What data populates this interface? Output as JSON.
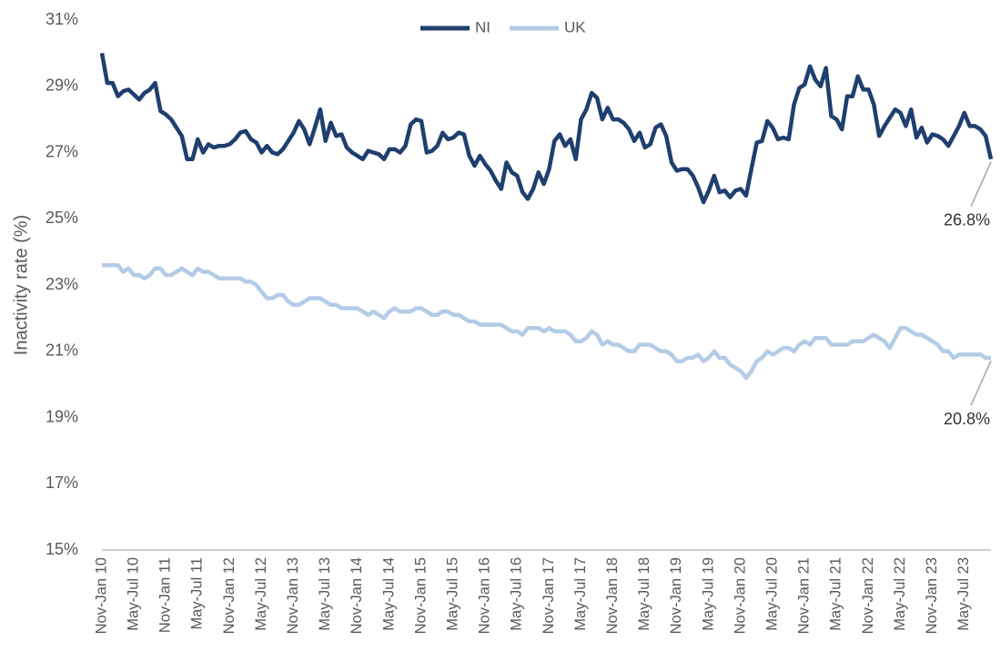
{
  "chart_data": {
    "type": "line",
    "y_label": "Inactivity rate (%)",
    "legend": "top",
    "ylim": [
      15,
      31
    ],
    "yticks": [
      {
        "value": 15,
        "label": "15%"
      },
      {
        "value": 17,
        "label": "17%"
      },
      {
        "value": 19,
        "label": "19%"
      },
      {
        "value": 21,
        "label": "21%"
      },
      {
        "value": 23,
        "label": "23%"
      },
      {
        "value": 25,
        "label": "25%"
      },
      {
        "value": 27,
        "label": "27%"
      },
      {
        "value": 29,
        "label": "29%"
      },
      {
        "value": 31,
        "label": "31%"
      }
    ],
    "categories": [
      "Nov-Jan 10",
      null,
      null,
      null,
      null,
      null,
      "May-Jul 10",
      null,
      null,
      null,
      null,
      null,
      "Nov-Jan 11",
      null,
      null,
      null,
      null,
      null,
      "May-Jul 11",
      null,
      null,
      null,
      null,
      null,
      "Nov-Jan 12",
      null,
      null,
      null,
      null,
      null,
      "May-Jul 12",
      null,
      null,
      null,
      null,
      null,
      "Nov-Jan 13",
      null,
      null,
      null,
      null,
      null,
      "May-Jul 13",
      null,
      null,
      null,
      null,
      null,
      "Nov-Jan 14",
      null,
      null,
      null,
      null,
      null,
      "May-Jul 14",
      null,
      null,
      null,
      null,
      null,
      "Nov-Jan 15",
      null,
      null,
      null,
      null,
      null,
      "May-Jul 15",
      null,
      null,
      null,
      null,
      null,
      "Nov-Jan 16",
      null,
      null,
      null,
      null,
      null,
      "May-Jul 16",
      null,
      null,
      null,
      null,
      null,
      "Nov-Jan 17",
      null,
      null,
      null,
      null,
      null,
      "May-Jul 17",
      null,
      null,
      null,
      null,
      null,
      "Nov-Jan 18",
      null,
      null,
      null,
      null,
      null,
      "May-Jul 18",
      null,
      null,
      null,
      null,
      null,
      "Nov-Jan 19",
      null,
      null,
      null,
      null,
      null,
      "May-Jul 19",
      null,
      null,
      null,
      null,
      null,
      "Nov-Jan 20",
      null,
      null,
      null,
      null,
      null,
      "May-Jul 20",
      null,
      null,
      null,
      null,
      null,
      "Nov-Jan 21",
      null,
      null,
      null,
      null,
      null,
      "May-Jul 21",
      null,
      null,
      null,
      null,
      null,
      "Nov-Jan 22",
      null,
      null,
      null,
      null,
      null,
      "May-Jul 22",
      null,
      null,
      null,
      null,
      null,
      "Nov-Jan 23",
      null,
      null,
      null,
      null,
      null,
      "May-Jul 23",
      null,
      null,
      null,
      null,
      null
    ],
    "series": [
      {
        "name": "NI",
        "color": "#1f3f6e",
        "values": [
          30.0,
          29.1,
          29.1,
          28.7,
          28.85,
          28.9,
          28.75,
          28.6,
          28.8,
          28.9,
          29.1,
          28.25,
          28.15,
          28.0,
          27.75,
          27.5,
          26.8,
          26.8,
          27.4,
          27.0,
          27.25,
          27.15,
          27.2,
          27.2,
          27.25,
          27.4,
          27.6,
          27.65,
          27.4,
          27.3,
          27.0,
          27.2,
          27.0,
          26.95,
          27.1,
          27.35,
          27.6,
          27.95,
          27.7,
          27.25,
          27.75,
          28.3,
          27.35,
          27.9,
          27.5,
          27.55,
          27.15,
          27.0,
          26.9,
          26.8,
          27.05,
          27.0,
          26.95,
          26.8,
          27.1,
          27.1,
          27.0,
          27.2,
          27.85,
          28.0,
          27.95,
          27.0,
          27.05,
          27.2,
          27.6,
          27.4,
          27.45,
          27.6,
          27.55,
          26.9,
          26.6,
          26.9,
          26.65,
          26.45,
          26.15,
          25.9,
          26.7,
          26.4,
          26.3,
          25.8,
          25.6,
          25.9,
          26.4,
          26.05,
          26.5,
          27.35,
          27.55,
          27.2,
          27.4,
          26.8,
          28.0,
          28.3,
          28.8,
          28.65,
          28.0,
          28.35,
          28.0,
          28.0,
          27.9,
          27.7,
          27.35,
          27.6,
          27.15,
          27.25,
          27.75,
          27.85,
          27.5,
          26.7,
          26.45,
          26.5,
          26.5,
          26.3,
          25.95,
          25.5,
          25.85,
          26.3,
          25.8,
          25.85,
          25.65,
          25.85,
          25.9,
          25.7,
          26.5,
          27.3,
          27.35,
          27.95,
          27.75,
          27.4,
          27.45,
          27.4,
          28.45,
          28.95,
          29.05,
          29.6,
          29.2,
          29.0,
          29.55,
          28.1,
          28.0,
          27.7,
          28.7,
          28.7,
          29.3,
          28.9,
          28.9,
          28.45,
          27.5,
          27.8,
          28.05,
          28.3,
          28.2,
          27.8,
          28.3,
          27.45,
          27.75,
          27.3,
          27.55,
          27.5,
          27.4,
          27.2,
          27.5,
          27.8,
          28.2,
          27.8,
          27.8,
          27.7,
          27.5,
          26.8
        ]
      },
      {
        "name": "UK",
        "color": "#b4cbe6",
        "values": [
          23.6,
          23.6,
          23.6,
          23.6,
          23.4,
          23.5,
          23.3,
          23.3,
          23.2,
          23.3,
          23.5,
          23.5,
          23.3,
          23.3,
          23.4,
          23.5,
          23.4,
          23.3,
          23.5,
          23.4,
          23.4,
          23.3,
          23.2,
          23.2,
          23.2,
          23.2,
          23.2,
          23.1,
          23.1,
          23.0,
          22.8,
          22.6,
          22.6,
          22.7,
          22.7,
          22.5,
          22.4,
          22.4,
          22.5,
          22.6,
          22.6,
          22.6,
          22.5,
          22.4,
          22.4,
          22.3,
          22.3,
          22.3,
          22.3,
          22.2,
          22.1,
          22.2,
          22.1,
          22.0,
          22.2,
          22.3,
          22.2,
          22.2,
          22.2,
          22.3,
          22.3,
          22.2,
          22.1,
          22.1,
          22.2,
          22.2,
          22.1,
          22.1,
          22.0,
          21.9,
          21.9,
          21.8,
          21.8,
          21.8,
          21.8,
          21.8,
          21.7,
          21.6,
          21.6,
          21.5,
          21.7,
          21.7,
          21.7,
          21.6,
          21.7,
          21.6,
          21.6,
          21.6,
          21.5,
          21.3,
          21.3,
          21.4,
          21.6,
          21.5,
          21.2,
          21.3,
          21.2,
          21.2,
          21.1,
          21.0,
          21.0,
          21.2,
          21.2,
          21.2,
          21.1,
          21.0,
          21.0,
          20.9,
          20.7,
          20.7,
          20.8,
          20.8,
          20.9,
          20.7,
          20.8,
          21.0,
          20.8,
          20.8,
          20.6,
          20.5,
          20.4,
          20.2,
          20.4,
          20.7,
          20.8,
          21.0,
          20.9,
          21.0,
          21.1,
          21.1,
          21.0,
          21.2,
          21.3,
          21.2,
          21.4,
          21.4,
          21.4,
          21.2,
          21.2,
          21.2,
          21.2,
          21.3,
          21.3,
          21.3,
          21.4,
          21.5,
          21.4,
          21.3,
          21.1,
          21.4,
          21.7,
          21.7,
          21.6,
          21.5,
          21.5,
          21.4,
          21.3,
          21.2,
          21.0,
          21.0,
          20.8,
          20.9,
          20.9,
          20.9,
          20.9,
          20.9,
          20.8,
          20.8
        ]
      }
    ],
    "annotations": [
      {
        "text": "26.8%"
      },
      {
        "text": "20.8%"
      }
    ]
  }
}
